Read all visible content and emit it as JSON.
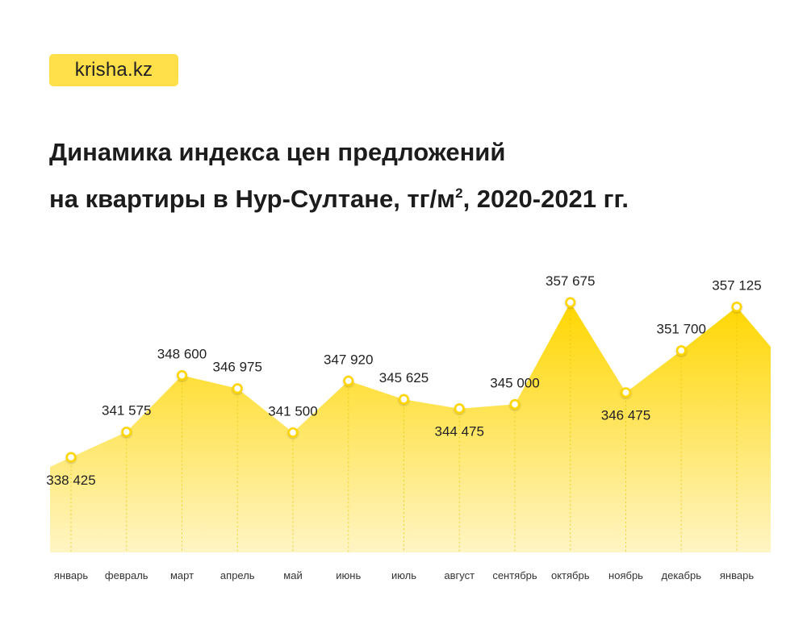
{
  "brand": {
    "logo_text": "krisha.kz",
    "accent": "#ffd600"
  },
  "title": {
    "line1": "Динамика индекса цен предложений",
    "line2_main": "на квартиры в Нур-Султане, тг/м",
    "line2_sup": "2",
    "line2_tail": ", 2020-2021 гг."
  },
  "chart_data": {
    "type": "area",
    "title": "Динамика индекса цен предложений на квартиры в Нур-Султане, тг/м², 2020-2021 гг.",
    "categories": [
      "январь",
      "февраль",
      "март",
      "апрель",
      "май",
      "июнь",
      "июль",
      "август",
      "сентябрь",
      "октябрь",
      "ноябрь",
      "декабрь",
      "январь"
    ],
    "values": [
      338425,
      341575,
      348600,
      346975,
      341500,
      347920,
      345625,
      344475,
      345000,
      357675,
      346475,
      351700,
      357125
    ],
    "value_labels": [
      "338 425",
      "341 575",
      "348 600",
      "346 975",
      "341 500",
      "347 920",
      "345 625",
      "344 475",
      "345 000",
      "357 675",
      "346 475",
      "351 700",
      "357 125"
    ],
    "grid": false,
    "legend": "none",
    "colors": {
      "fill_top": "#ffd600",
      "fill_bottom": "#fff3b8",
      "marker": "#ffd600"
    }
  }
}
